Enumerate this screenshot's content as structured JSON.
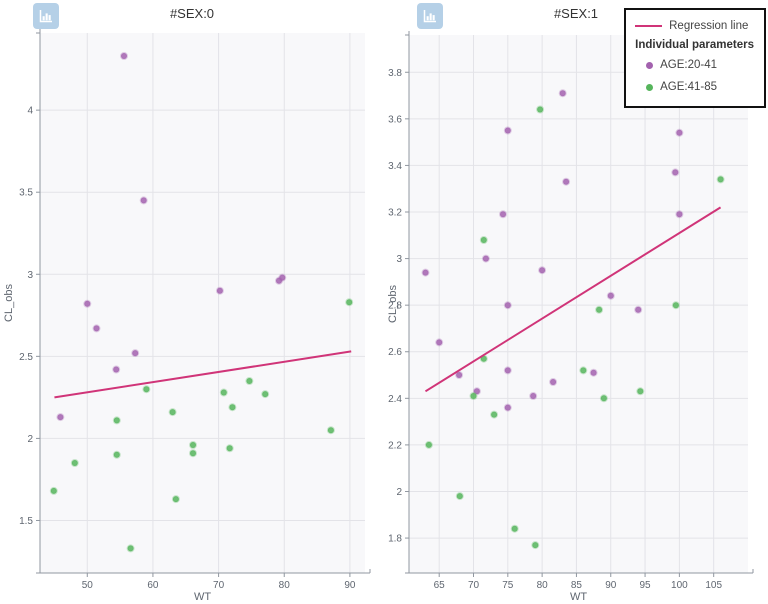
{
  "colors": {
    "plot_bg": "#f8f8fa",
    "grid": "#e3e3e8",
    "axis": "#9097a0",
    "tick_text": "#5f6670",
    "title_text": "#333333",
    "purple": "#a362ae",
    "green": "#56b55c",
    "regression": "#d03478",
    "button_bg": "#b5d0e7",
    "legend_border": "#111111"
  },
  "legend": {
    "regression_label": "Regression line",
    "group_label": "Individual parameters",
    "items": [
      {
        "label": "AGE:20-41",
        "color": "#a362ae"
      },
      {
        "label": "AGE:41-85",
        "color": "#56b55c"
      }
    ]
  },
  "chart_data": [
    {
      "type": "scatter",
      "title": "#SEX:0",
      "xlabel": "WT",
      "ylabel": "CL_obs",
      "xlim": [
        42.8,
        92.3
      ],
      "ylim": [
        1.18,
        4.47
      ],
      "xticks": [
        50,
        60,
        70,
        80,
        90
      ],
      "yticks": [
        1.5,
        2,
        2.5,
        3,
        3.5,
        4
      ],
      "grid": true,
      "series": [
        {
          "name": "AGE:20-41",
          "color": "#a362ae",
          "points": [
            [
              55.6,
              4.33
            ],
            [
              58.6,
              3.45
            ],
            [
              70.2,
              2.9
            ],
            [
              79.2,
              2.96
            ],
            [
              79.7,
              2.98
            ],
            [
              50.0,
              2.82
            ],
            [
              51.4,
              2.67
            ],
            [
              57.3,
              2.52
            ],
            [
              54.4,
              2.42
            ],
            [
              45.9,
              2.13
            ]
          ]
        },
        {
          "name": "AGE:41-85",
          "color": "#56b55c",
          "points": [
            [
              89.9,
              2.83
            ],
            [
              59.0,
              2.3
            ],
            [
              74.7,
              2.35
            ],
            [
              70.8,
              2.28
            ],
            [
              77.1,
              2.27
            ],
            [
              72.1,
              2.19
            ],
            [
              63.0,
              2.16
            ],
            [
              54.5,
              2.11
            ],
            [
              87.1,
              2.05
            ],
            [
              71.7,
              1.94
            ],
            [
              66.1,
              1.96
            ],
            [
              66.1,
              1.91
            ],
            [
              54.5,
              1.9
            ],
            [
              48.1,
              1.85
            ],
            [
              44.9,
              1.68
            ],
            [
              63.5,
              1.63
            ],
            [
              56.6,
              1.33
            ]
          ]
        }
      ],
      "regression": {
        "name": "Regression line",
        "color": "#d03478",
        "from": [
          45.0,
          2.25
        ],
        "to": [
          90.2,
          2.53
        ]
      }
    },
    {
      "type": "scatter",
      "title": "#SEX:1",
      "xlabel": "WT",
      "ylabel": "CL_obs",
      "xlim": [
        60.6,
        110.0
      ],
      "ylim": [
        1.65,
        3.96
      ],
      "xticks": [
        65,
        70,
        75,
        80,
        85,
        90,
        95,
        100,
        105
      ],
      "yticks": [
        1.8,
        2,
        2.2,
        2.4,
        2.6,
        2.8,
        3,
        3.2,
        3.4,
        3.6,
        3.8
      ],
      "grid": true,
      "series": [
        {
          "name": "AGE:20-41",
          "color": "#a362ae",
          "points": [
            [
              63.0,
              2.94
            ],
            [
              65.0,
              2.64
            ],
            [
              67.9,
              2.5
            ],
            [
              70.5,
              2.43
            ],
            [
              71.8,
              3.0
            ],
            [
              74.3,
              3.19
            ],
            [
              75.0,
              3.55
            ],
            [
              75.0,
              2.8
            ],
            [
              75.0,
              2.52
            ],
            [
              75.0,
              2.36
            ],
            [
              78.7,
              2.41
            ],
            [
              80.0,
              2.95
            ],
            [
              81.6,
              2.47
            ],
            [
              83.0,
              3.71
            ],
            [
              83.5,
              3.33
            ],
            [
              87.5,
              2.51
            ],
            [
              90.0,
              2.84
            ],
            [
              94.0,
              2.78
            ],
            [
              99.4,
              3.37
            ],
            [
              100.0,
              3.54
            ],
            [
              100.0,
              3.19
            ]
          ]
        },
        {
          "name": "AGE:41-85",
          "color": "#56b55c",
          "points": [
            [
              63.5,
              2.2
            ],
            [
              68.0,
              1.98
            ],
            [
              70.0,
              2.41
            ],
            [
              71.5,
              2.57
            ],
            [
              71.5,
              3.08
            ],
            [
              73.0,
              2.33
            ],
            [
              76.0,
              1.84
            ],
            [
              79.0,
              1.77
            ],
            [
              79.7,
              3.64
            ],
            [
              86.0,
              2.52
            ],
            [
              88.3,
              2.78
            ],
            [
              89.0,
              2.4
            ],
            [
              94.3,
              2.43
            ],
            [
              99.5,
              2.8
            ],
            [
              106.0,
              3.34
            ]
          ]
        }
      ],
      "regression": {
        "name": "Regression line",
        "color": "#d03478",
        "from": [
          63.0,
          2.43
        ],
        "to": [
          106.0,
          3.22
        ]
      }
    }
  ]
}
